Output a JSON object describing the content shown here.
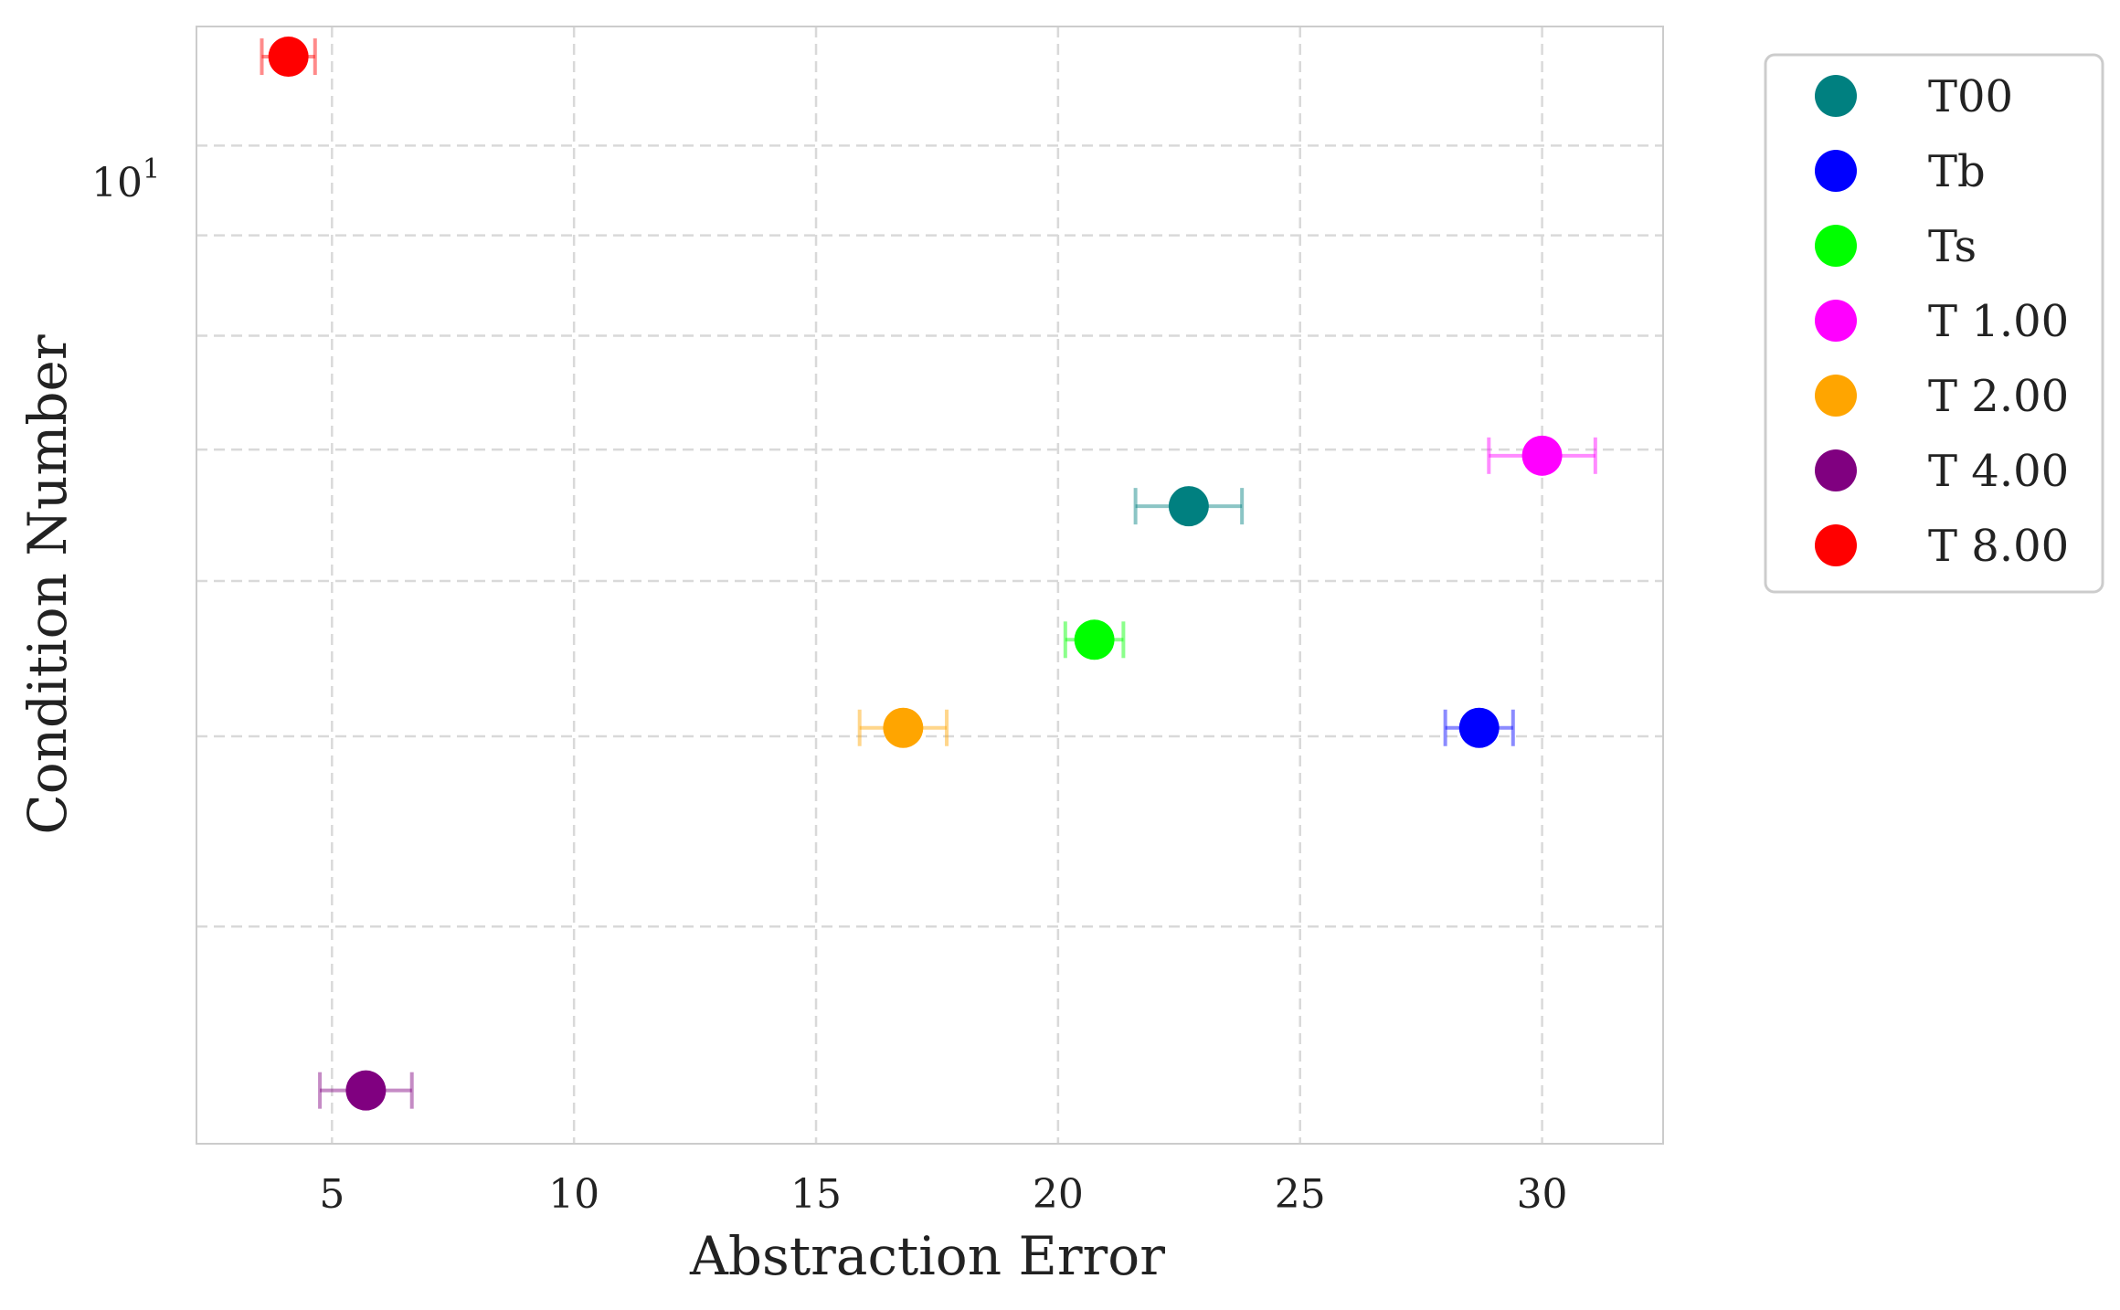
{
  "chart_data": {
    "type": "scatter",
    "xlabel": "Abstraction Error",
    "ylabel": "Condition Number",
    "xlim": [
      2.2,
      32.5
    ],
    "ylim": [
      3.1,
      11.5
    ],
    "y_scale": "log",
    "x_ticks": [
      5,
      10,
      15,
      20,
      25,
      30
    ],
    "x_tick_labels": [
      "5",
      "10",
      "15",
      "20",
      "25",
      "30"
    ],
    "y_major_ticks": [
      10
    ],
    "y_tick_label": {
      "base": "10",
      "exponent": "1"
    },
    "y_minor_ticks": [
      4,
      5,
      6,
      7,
      8,
      9
    ],
    "grid": true,
    "legend_position": "outside-right",
    "error_bars": "horizontal",
    "series": [
      {
        "name": "T00",
        "color": "#008080",
        "x": 22.7,
        "y": 6.55,
        "xerr": 1.1
      },
      {
        "name": "Tb",
        "color": "#0000ff",
        "x": 28.7,
        "y": 5.05,
        "xerr": 0.7
      },
      {
        "name": "Ts",
        "color": "#00ff00",
        "x": 20.75,
        "y": 5.6,
        "xerr": 0.6
      },
      {
        "name": "T 1.00",
        "color": "#ff00ff",
        "x": 30.0,
        "y": 6.95,
        "xerr": 1.1
      },
      {
        "name": "T 2.00",
        "color": "#ffa500",
        "x": 16.8,
        "y": 5.05,
        "xerr": 0.9
      },
      {
        "name": "T 4.00",
        "color": "#800080",
        "x": 5.7,
        "y": 3.3,
        "xerr": 0.95
      },
      {
        "name": "T 8.00",
        "color": "#ff0000",
        "x": 4.1,
        "y": 11.1,
        "xerr": 0.55
      }
    ]
  }
}
